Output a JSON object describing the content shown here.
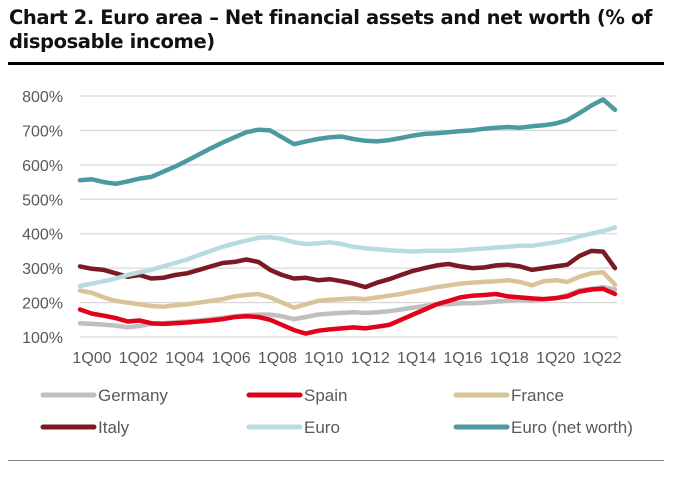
{
  "title": "Chart 2. Euro area – Net financial assets and net worth (% of disposable income)",
  "chart_data": {
    "type": "line",
    "title": "Chart 2. Euro area – Net financial assets and net worth (% of disposable income)",
    "xlabel": "",
    "ylabel": "",
    "ylim": [
      100,
      800
    ],
    "yticks": [
      100,
      200,
      300,
      400,
      500,
      600,
      700,
      800
    ],
    "ytick_labels": [
      "100%",
      "200%",
      "300%",
      "400%",
      "500%",
      "600%",
      "700%",
      "800%"
    ],
    "grid": true,
    "xtick_labels": [
      "1Q00",
      "1Q02",
      "1Q04",
      "1Q06",
      "1Q08",
      "1Q10",
      "1Q12",
      "1Q14",
      "1Q16",
      "1Q18",
      "1Q20",
      "1Q22"
    ],
    "x": [
      "1Q00",
      "3Q00",
      "1Q01",
      "3Q01",
      "1Q02",
      "3Q02",
      "1Q03",
      "3Q03",
      "1Q04",
      "3Q04",
      "1Q05",
      "3Q05",
      "1Q06",
      "3Q06",
      "1Q07",
      "3Q07",
      "1Q08",
      "3Q08",
      "1Q09",
      "3Q09",
      "1Q10",
      "3Q10",
      "1Q11",
      "3Q11",
      "1Q12",
      "3Q12",
      "1Q13",
      "3Q13",
      "1Q14",
      "3Q14",
      "1Q15",
      "3Q15",
      "1Q16",
      "3Q16",
      "1Q17",
      "3Q17",
      "1Q18",
      "3Q18",
      "1Q19",
      "3Q19",
      "1Q20",
      "3Q20",
      "1Q21",
      "3Q21",
      "1Q22",
      "3Q22"
    ],
    "legend_position": "bottom",
    "series": [
      {
        "name": "Germany",
        "color": "#bfbfbf",
        "values": [
          140,
          138,
          136,
          133,
          128,
          132,
          138,
          140,
          143,
          145,
          148,
          152,
          156,
          160,
          163,
          165,
          165,
          160,
          152,
          158,
          165,
          168,
          170,
          172,
          170,
          172,
          175,
          180,
          185,
          190,
          195,
          195,
          198,
          198,
          200,
          203,
          205,
          208,
          205,
          210,
          212,
          222,
          235,
          240,
          245,
          238
        ]
      },
      {
        "name": "Spain",
        "color": "#e3001b",
        "values": [
          180,
          168,
          162,
          155,
          145,
          148,
          140,
          138,
          140,
          142,
          145,
          148,
          152,
          158,
          160,
          158,
          150,
          135,
          120,
          110,
          118,
          122,
          125,
          128,
          125,
          130,
          135,
          150,
          165,
          180,
          195,
          205,
          215,
          220,
          222,
          225,
          218,
          215,
          212,
          210,
          213,
          218,
          232,
          238,
          240,
          225
        ]
      },
      {
        "name": "France",
        "color": "#d9c49a",
        "values": [
          235,
          228,
          215,
          205,
          200,
          195,
          190,
          188,
          192,
          195,
          200,
          205,
          210,
          218,
          222,
          225,
          215,
          200,
          185,
          195,
          205,
          208,
          210,
          212,
          210,
          215,
          220,
          225,
          232,
          238,
          245,
          250,
          255,
          258,
          260,
          262,
          265,
          260,
          250,
          262,
          265,
          260,
          275,
          285,
          288,
          252
        ]
      },
      {
        "name": "Italy",
        "color": "#7b1a22",
        "values": [
          305,
          298,
          295,
          285,
          275,
          280,
          270,
          272,
          280,
          285,
          295,
          305,
          315,
          318,
          325,
          318,
          295,
          280,
          270,
          272,
          265,
          268,
          262,
          255,
          245,
          258,
          268,
          280,
          292,
          300,
          308,
          312,
          305,
          300,
          302,
          308,
          310,
          305,
          295,
          300,
          305,
          310,
          335,
          350,
          348,
          300
        ]
      },
      {
        "name": "Euro",
        "color": "#b7dce0",
        "values": [
          248,
          255,
          262,
          270,
          280,
          288,
          295,
          305,
          315,
          325,
          338,
          350,
          362,
          372,
          380,
          388,
          390,
          385,
          375,
          370,
          372,
          375,
          370,
          362,
          358,
          355,
          352,
          350,
          348,
          350,
          350,
          350,
          352,
          355,
          357,
          360,
          362,
          365,
          365,
          370,
          375,
          382,
          392,
          400,
          408,
          418
        ]
      },
      {
        "name": "Euro (net worth)",
        "color": "#4a9aa0",
        "values": [
          555,
          558,
          550,
          545,
          552,
          560,
          565,
          580,
          595,
          612,
          630,
          648,
          665,
          680,
          695,
          702,
          700,
          680,
          660,
          668,
          675,
          680,
          682,
          675,
          670,
          668,
          672,
          678,
          685,
          690,
          692,
          695,
          698,
          700,
          705,
          708,
          710,
          708,
          712,
          715,
          720,
          730,
          750,
          772,
          790,
          760
        ]
      }
    ]
  }
}
